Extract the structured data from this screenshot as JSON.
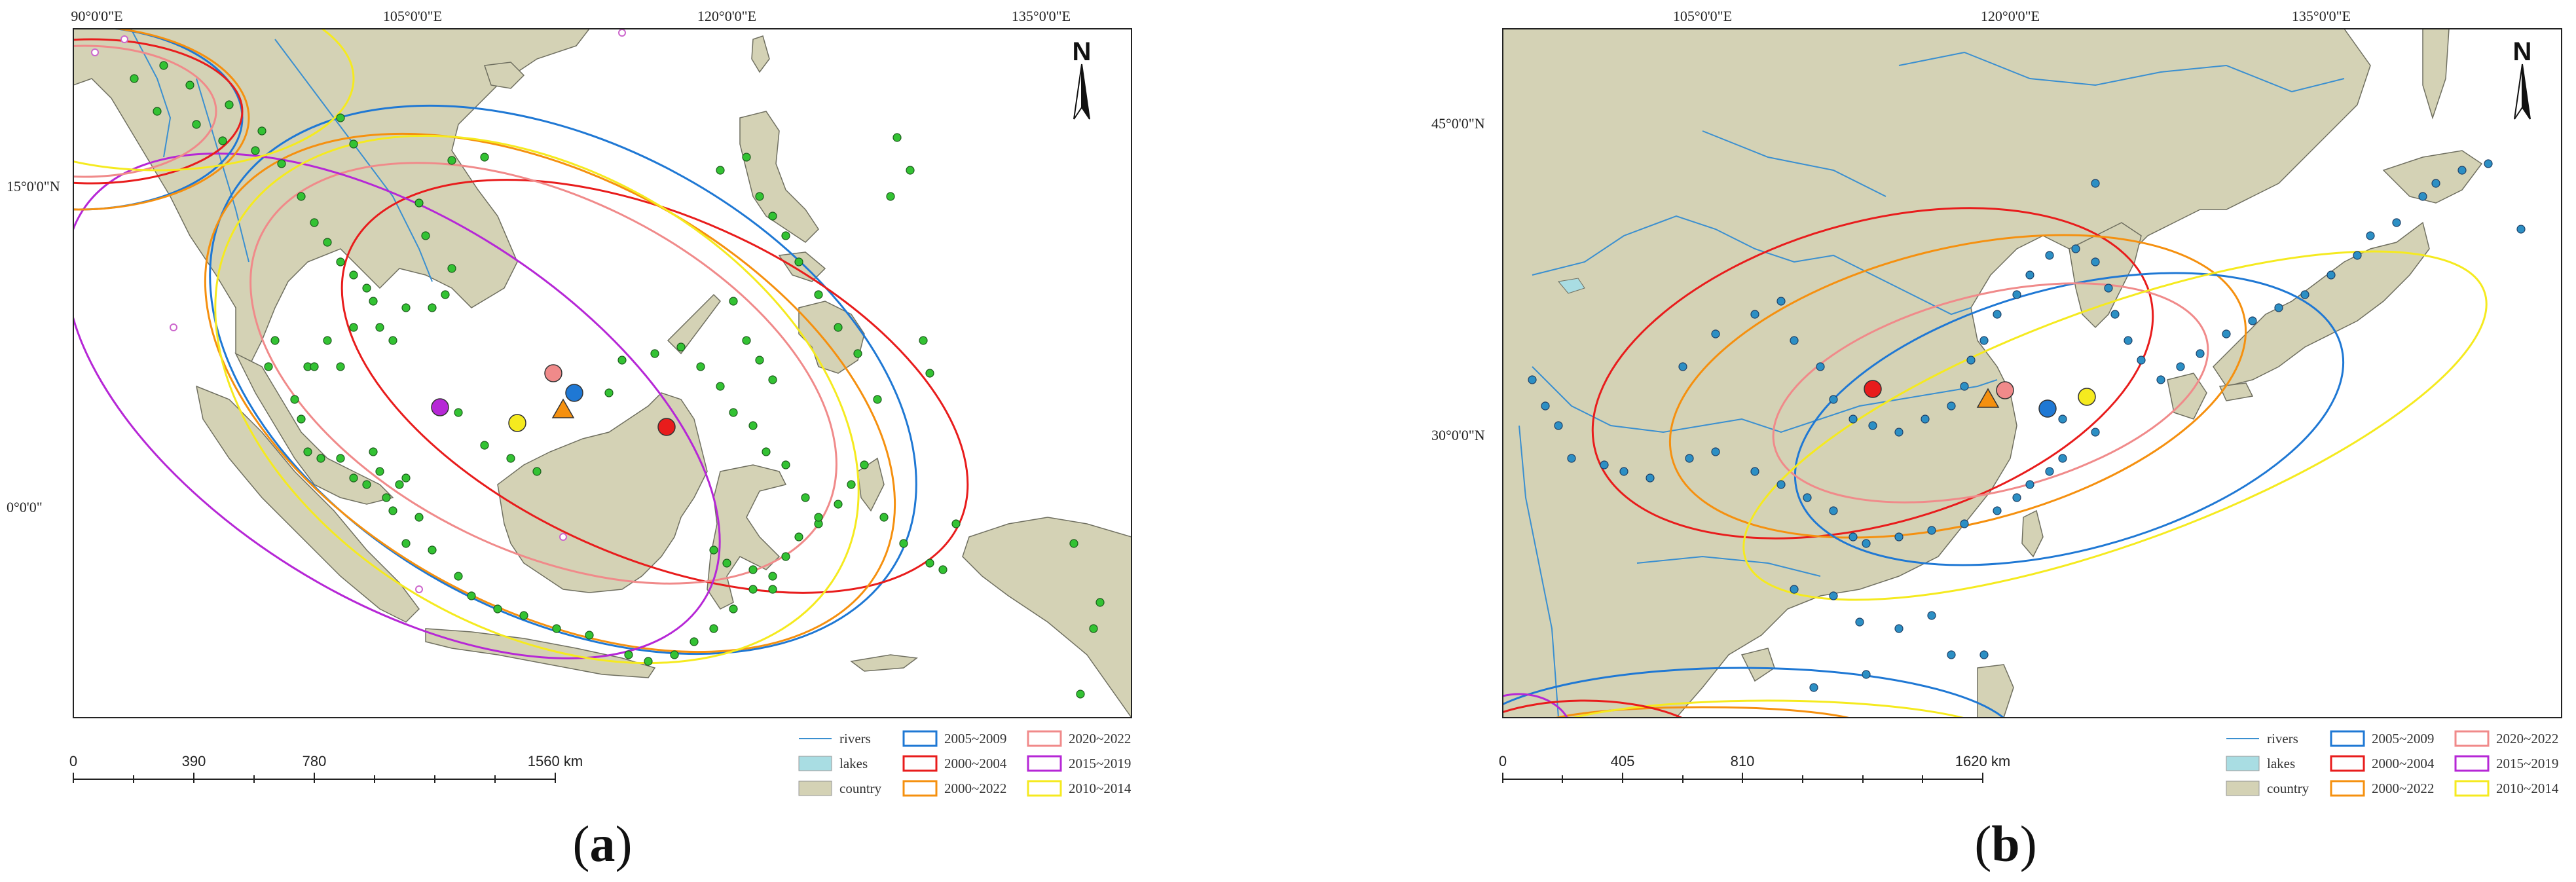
{
  "colors": {
    "land": "#d4d2b5",
    "land_stroke": "#6f6f60",
    "sea": "#ffffff",
    "river": "#3a8fd0",
    "lake": "#a9dde3",
    "site_a": "#33c233",
    "site_b": "#2c8fc4",
    "site_other": "#cc66cc"
  },
  "legend_items": [
    {
      "label": "rivers",
      "kind": "line",
      "color": "#3a8fd0",
      "col": 0,
      "row": 0
    },
    {
      "label": "lakes",
      "kind": "fill",
      "color": "#a9dde3",
      "col": 0,
      "row": 1
    },
    {
      "label": "country",
      "kind": "fill",
      "color": "#d4d2b5",
      "col": 0,
      "row": 2
    },
    {
      "label": "2005~2009",
      "kind": "box",
      "color": "#1f78d4",
      "col": 1,
      "row": 0
    },
    {
      "label": "2000~2004",
      "kind": "box",
      "color": "#e81c1c",
      "col": 1,
      "row": 1
    },
    {
      "label": "2000~2022",
      "kind": "box",
      "color": "#f5900f",
      "col": 1,
      "row": 2
    },
    {
      "label": "2020~2022",
      "kind": "box",
      "color": "#f08a8a",
      "col": 2,
      "row": 0
    },
    {
      "label": "2015~2019",
      "kind": "box",
      "color": "#b627d6",
      "col": 2,
      "row": 1
    },
    {
      "label": "2010~2014",
      "kind": "box",
      "color": "#f5ea1f",
      "col": 2,
      "row": 2
    }
  ],
  "panels": [
    {
      "id": "a",
      "label_open": "(",
      "label_letter": "a",
      "label_close": ")",
      "north": "N",
      "lon_ticks": [
        "90°0'0\"E",
        "105°0'0\"E",
        "120°0'0\"E",
        "135°0'0\"E"
      ],
      "lat_ticks": [
        "15°0'0\"N",
        "0°0'0\""
      ],
      "scale": {
        "labels": [
          "0",
          "390",
          "780",
          "1560 km"
        ],
        "unit": "km"
      },
      "legend_items_ref": true
    },
    {
      "id": "b",
      "label_open": "(",
      "label_letter": "b",
      "label_close": ")",
      "north": "N",
      "lon_ticks": [
        "105°0'0\"E",
        "120°0'0\"E",
        "135°0'0\"E"
      ],
      "lat_ticks": [
        "45°0'0\"N",
        "30°0'0\"N"
      ],
      "scale": {
        "labels": [
          "0",
          "405",
          "810",
          "1620 km"
        ],
        "unit": "km"
      },
      "legend_items_ref": true
    }
  ]
}
